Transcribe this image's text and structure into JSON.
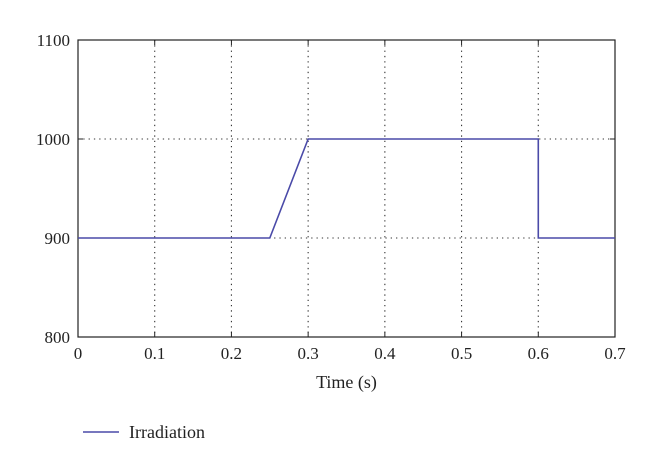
{
  "chart_data": {
    "type": "line",
    "title": "",
    "xlabel": "Time (s)",
    "ylabel": "",
    "xlim": [
      0,
      0.7
    ],
    "ylim": [
      800,
      1100
    ],
    "xticks": [
      0,
      0.1,
      0.2,
      0.3,
      0.4,
      0.5,
      0.6,
      0.7
    ],
    "xtick_labels": [
      "0",
      "0.1",
      "0.2",
      "0.3",
      "0.4",
      "0.5",
      "0.6",
      "0.7"
    ],
    "yticks": [
      800,
      900,
      1000,
      1100
    ],
    "ytick_labels": [
      "800",
      "900",
      "1000",
      "1100"
    ],
    "grid": true,
    "legend_position": "bottom-left",
    "series": [
      {
        "name": "Irradiation",
        "color": "#4a4aa8",
        "x": [
          0,
          0.25,
          0.3,
          0.6,
          0.6,
          0.7
        ],
        "y": [
          900,
          900,
          1000,
          1000,
          900,
          900
        ]
      }
    ]
  }
}
